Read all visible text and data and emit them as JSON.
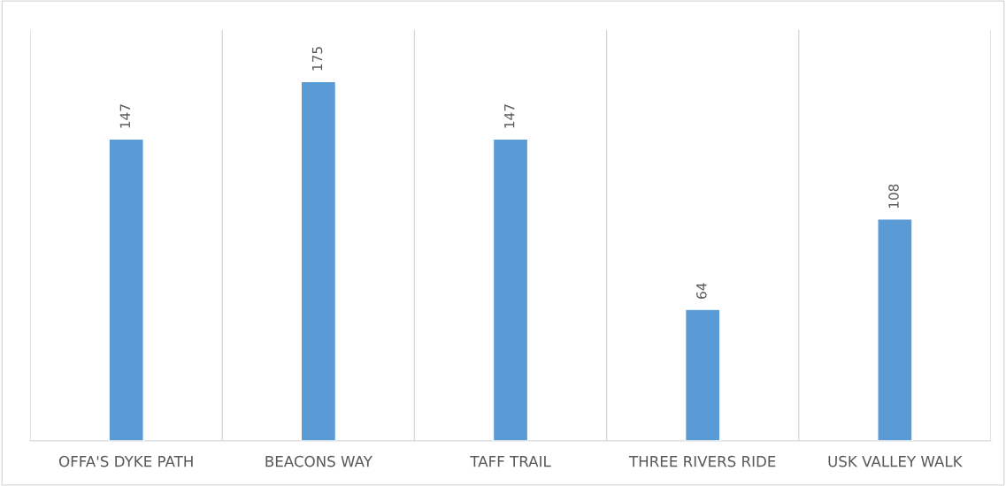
{
  "chart_data": {
    "type": "bar",
    "categories": [
      "OFFA'S DYKE PATH",
      "BEACONS WAY",
      "TAFF TRAIL",
      "THREE RIVERS RIDE",
      "USK VALLEY WALK"
    ],
    "values": [
      147,
      175,
      147,
      64,
      108
    ],
    "color": "#5b9bd5",
    "ylim": [
      0,
      200
    ],
    "data_labels": true,
    "grid": "x",
    "tick_labels": "x"
  }
}
